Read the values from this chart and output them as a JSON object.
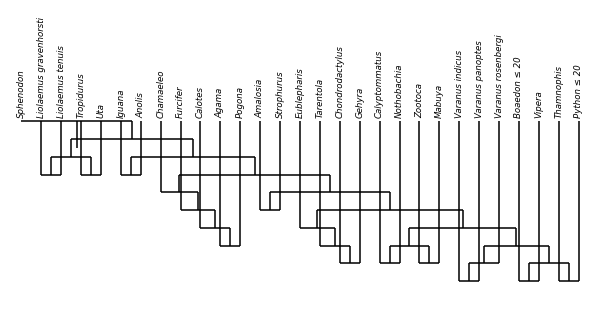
{
  "taxa": [
    "Sphenodon",
    "Liolaemus gravenhorsti",
    "Liolaemus tenuis",
    "Tropidurus",
    "Uta",
    "Iguana",
    "Anolis",
    "Chamaeleo",
    "Furcifer",
    "Calotes",
    "Agama",
    "Pogona",
    "Amalosia",
    "Strophurus",
    "Eublepharis",
    "Tarentola",
    "Chondrodactylus",
    "Gehyra",
    "Calyptommatus",
    "Nothobachia",
    "Zootoca",
    "Mabuya",
    "Varanus indicus",
    "Varanus panoptes",
    "Varanus rosenbergi",
    "Boaedon ≤ 20",
    "Vipera",
    "Thamnophis",
    "Python ≤ 20"
  ],
  "label_fontsize": 6.2,
  "line_width": 1.1,
  "line_color": "#000000",
  "background_color": "#ffffff"
}
